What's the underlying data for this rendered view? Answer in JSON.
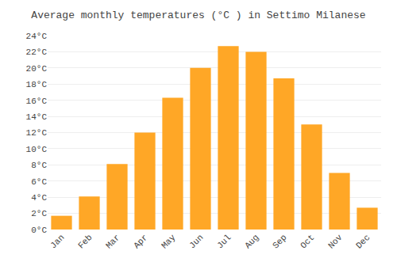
{
  "chart_data": {
    "type": "bar",
    "title": "Average monthly temperatures (°C ) in Settimo Milanese",
    "categories": [
      "Jan",
      "Feb",
      "Mar",
      "Apr",
      "May",
      "Jun",
      "Jul",
      "Aug",
      "Sep",
      "Oct",
      "Nov",
      "Dec"
    ],
    "values": [
      1.7,
      4.1,
      8.1,
      12.0,
      16.3,
      20.0,
      22.7,
      22.0,
      18.7,
      13.0,
      7.0,
      2.7
    ],
    "color": "#FFA726",
    "ylim": [
      0,
      24
    ],
    "yticks": [
      {
        "value": 0,
        "label": "0°C"
      },
      {
        "value": 2,
        "label": "2°C"
      },
      {
        "value": 4,
        "label": "4°C"
      },
      {
        "value": 6,
        "label": "6°C"
      },
      {
        "value": 8,
        "label": "8°C"
      },
      {
        "value": 10,
        "label": "10°C"
      },
      {
        "value": 12,
        "label": "12°C"
      },
      {
        "value": 14,
        "label": "14°C"
      },
      {
        "value": 16,
        "label": "16°C"
      },
      {
        "value": 18,
        "label": "18°C"
      },
      {
        "value": 20,
        "label": "20°C"
      },
      {
        "value": 22,
        "label": "22°C"
      },
      {
        "value": 24,
        "label": "24°C"
      }
    ],
    "grid": true
  }
}
